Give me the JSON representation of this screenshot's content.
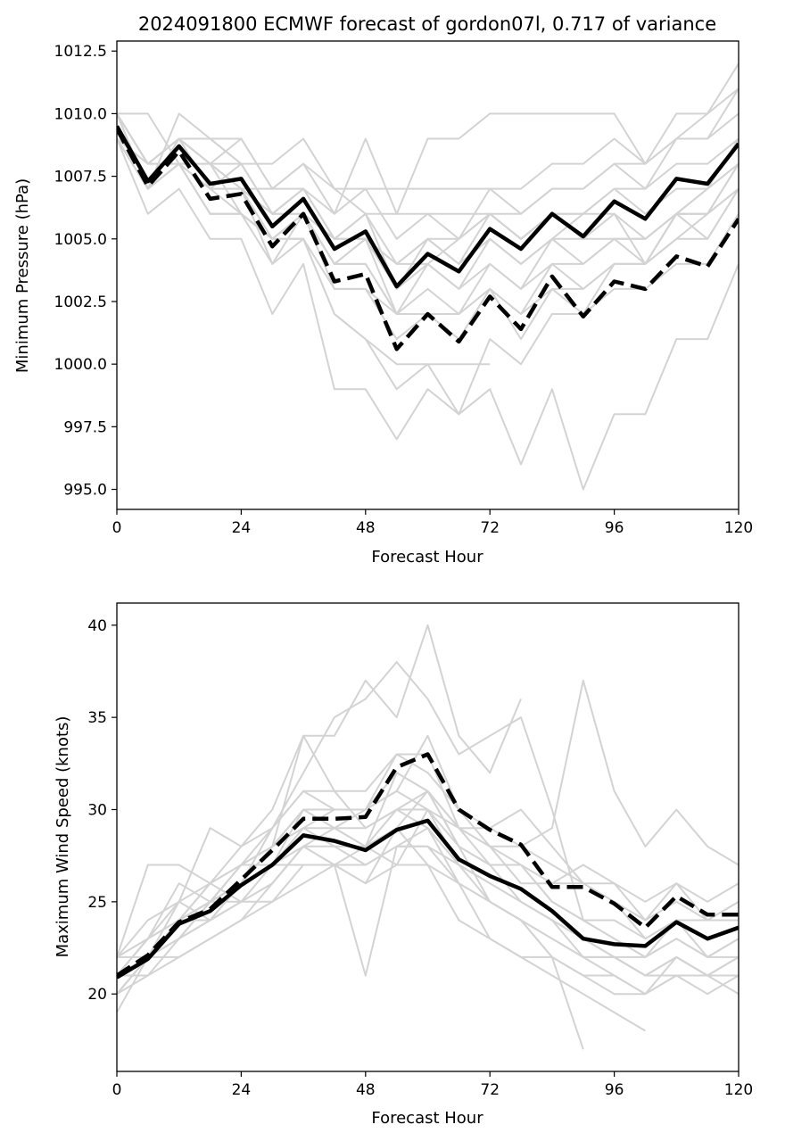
{
  "figure": {
    "title": "2024091800 ECMWF forecast of gordon07l, 0.717 of variance"
  },
  "colors": {
    "ensemble": "#d3d3d3",
    "mean": "#000000",
    "background": "#ffffff"
  },
  "chart_data": [
    {
      "type": "line",
      "title": "2024091800 ECMWF forecast of gordon07l, 0.717 of variance",
      "xlabel": "Forecast Hour",
      "ylabel": "Minimum Pressure (hPa)",
      "xlim": [
        0,
        120
      ],
      "ylim": [
        994.2,
        1012.9
      ],
      "xticks": [
        0,
        24,
        48,
        72,
        96,
        120
      ],
      "xtick_labels": [
        "0",
        "24",
        "48",
        "72",
        "96",
        "120"
      ],
      "yticks": [
        995.0,
        997.5,
        1000.0,
        1002.5,
        1005.0,
        1007.5,
        1010.0,
        1012.5
      ],
      "ytick_labels": [
        "995.0",
        "997.5",
        "1000.0",
        "1002.5",
        "1005.0",
        "1007.5",
        "1010.0",
        "1012.5"
      ],
      "grid": false,
      "x": [
        0,
        6,
        12,
        18,
        24,
        30,
        36,
        42,
        48,
        54,
        60,
        66,
        72,
        78,
        84,
        90,
        96,
        102,
        108,
        114,
        120
      ],
      "ensemble_members": [
        [
          1010,
          1010,
          1008,
          1008,
          1007,
          1007,
          1008,
          1007,
          1006,
          1006,
          1006,
          1006,
          1006,
          1006,
          1007,
          1007,
          1008,
          1008,
          1009,
          1010,
          1012
        ],
        [
          1010,
          1008,
          1009,
          1009,
          1009,
          1007,
          1007,
          1005,
          1005,
          1004,
          1004,
          1005,
          1006,
          1005,
          1006,
          1006,
          1007,
          1007,
          1009,
          1009,
          1011
        ],
        [
          1009,
          1007,
          1010,
          1009,
          1008,
          1006,
          1006,
          1004,
          1004,
          1002,
          1002,
          1001,
          1003,
          1002,
          1003,
          1003,
          1004,
          1004,
          1005,
          1005,
          1007
        ],
        [
          1010,
          1008,
          1009,
          1007,
          1007,
          1004,
          1006,
          1003,
          1003,
          1001,
          1002,
          1002,
          1003,
          1001,
          1003,
          1002,
          1003,
          1003,
          1004,
          1004,
          1006
        ],
        [
          1009,
          1006,
          1007,
          1005,
          1005,
          1002,
          1004,
          999,
          999,
          997,
          999,
          998,
          999,
          996,
          999,
          995,
          998,
          998,
          1001,
          1001,
          1004
        ],
        [
          1010,
          1008,
          1008,
          1008,
          1006,
          1005,
          1005,
          1002,
          1001,
          999,
          1000,
          1000,
          1000,
          null,
          null,
          null,
          null,
          null,
          null,
          null,
          null
        ],
        [
          1010,
          1007,
          1009,
          1007,
          1008,
          1006,
          1007,
          1006,
          1009,
          1006,
          1009,
          1009,
          1010,
          1010,
          1010,
          1010,
          1010,
          1008,
          1010,
          1010,
          1011
        ],
        [
          1009,
          1007,
          1008,
          1006,
          1006,
          1004,
          1005,
          1002,
          1001,
          1000,
          1000,
          998,
          1001,
          1000,
          1002,
          1002,
          1004,
          1004,
          1006,
          1006,
          1008
        ],
        [
          1009,
          1008,
          1009,
          1008,
          1009,
          1007,
          1008,
          1006,
          1007,
          1005,
          1006,
          1005,
          1007,
          1006,
          1007,
          1007,
          1008,
          1007,
          1008,
          1008,
          1009
        ],
        [
          1010,
          1008,
          1009,
          1008,
          1007,
          1006,
          1007,
          1005,
          1006,
          1003,
          1005,
          1004,
          1005,
          1004,
          1005,
          1006,
          1006,
          1005,
          1006,
          1006,
          1007
        ],
        [
          1009,
          1007,
          1008,
          1006,
          1006,
          1005,
          1006,
          1004,
          1005,
          1002,
          1004,
          1003,
          1004,
          1003,
          1005,
          1004,
          1005,
          1005,
          1006,
          1007,
          1008
        ],
        [
          1010,
          1008,
          1009,
          1008,
          1008,
          1006,
          1007,
          1005,
          1006,
          1004,
          1005,
          1004,
          1006,
          1005,
          1006,
          1005,
          1006,
          1004,
          1006,
          1006,
          1008
        ],
        [
          1010,
          1008,
          1009,
          1009,
          1008,
          1008,
          1009,
          1007,
          1007,
          1007,
          1007,
          1007,
          1007,
          1007,
          1008,
          1008,
          1009,
          1008,
          1009,
          1009,
          1010
        ],
        [
          1009,
          1007,
          1008,
          1007,
          1007,
          1005,
          1006,
          1004,
          1005,
          1003,
          1004,
          1003,
          1005,
          1004,
          1005,
          1005,
          1005,
          1004,
          1005,
          1006,
          1007
        ],
        [
          1010,
          1007,
          1009,
          1008,
          1007,
          1006,
          1006,
          1004,
          1004,
          1002,
          1003,
          1002,
          1004,
          1003,
          1004,
          1004,
          1005,
          1005,
          1006,
          1007,
          1009
        ],
        [
          1009,
          1008,
          1008,
          1007,
          1006,
          1005,
          1006,
          1005,
          1005,
          1004,
          1005,
          1005,
          1006,
          1005,
          1006,
          1006,
          1007,
          1006,
          1007,
          1007,
          1008
        ],
        [
          1010,
          1007,
          1008,
          1006,
          1006,
          1005,
          1005,
          1003,
          1003,
          1002,
          1002,
          1002,
          1003,
          1002,
          1004,
          1003,
          1004,
          1004,
          1006,
          1005,
          1007
        ]
      ],
      "mean": [
        1009.5,
        1007.3,
        1008.7,
        1007.2,
        1007.4,
        1005.5,
        1006.6,
        1004.6,
        1005.3,
        1003.1,
        1004.4,
        1003.7,
        1005.4,
        1004.6,
        1006.0,
        1005.1,
        1006.5,
        1005.8,
        1007.4,
        1007.2,
        1008.8
      ],
      "dashed": [
        1009.4,
        1007.1,
        1008.5,
        1006.6,
        1006.8,
        1004.7,
        1006.0,
        1003.3,
        1003.6,
        1000.6,
        1002.0,
        1000.9,
        1002.7,
        1001.4,
        1003.5,
        1001.9,
        1003.3,
        1003.0,
        1004.3,
        1003.9,
        1005.8
      ]
    },
    {
      "type": "line",
      "xlabel": "Forecast Hour",
      "ylabel": "Maximum Wind Speed (knots)",
      "xlim": [
        0,
        120
      ],
      "ylim": [
        15.8,
        41.2
      ],
      "xticks": [
        0,
        24,
        48,
        72,
        96,
        120
      ],
      "xtick_labels": [
        "0",
        "24",
        "48",
        "72",
        "96",
        "120"
      ],
      "yticks": [
        20,
        25,
        30,
        35,
        40
      ],
      "ytick_labels": [
        "20",
        "25",
        "30",
        "35",
        "40"
      ],
      "grid": false,
      "x": [
        0,
        6,
        12,
        18,
        24,
        30,
        36,
        42,
        48,
        54,
        60,
        66,
        72,
        78,
        84,
        90,
        96,
        102,
        108,
        114,
        120
      ],
      "ensemble_members": [
        [
          21,
          22,
          24,
          25,
          26,
          28,
          34,
          34,
          37,
          35,
          40,
          34,
          32,
          36,
          null,
          null,
          null,
          null,
          null,
          null,
          null
        ],
        [
          20,
          22,
          23,
          24,
          26,
          29,
          32,
          35,
          36,
          38,
          36,
          33,
          34,
          35,
          30,
          24,
          23,
          22,
          23,
          22,
          22
        ],
        [
          22,
          27,
          27,
          26,
          27,
          27,
          30,
          29,
          30,
          31,
          30,
          27,
          25,
          24,
          23,
          22,
          22,
          21,
          21,
          21,
          20
        ],
        [
          21,
          23,
          24,
          25,
          25,
          26,
          28,
          28,
          27,
          28,
          28,
          26,
          25,
          24,
          22,
          21,
          21,
          20,
          21,
          21,
          21
        ],
        [
          22,
          24,
          25,
          29,
          28,
          30,
          34,
          31,
          31,
          33,
          33,
          29,
          29,
          28,
          29,
          37,
          31,
          28,
          30,
          28,
          27
        ],
        [
          21,
          21,
          23,
          25,
          27,
          28,
          30,
          29,
          28,
          29,
          31,
          28,
          27,
          27,
          25,
          24,
          23,
          22,
          24,
          22,
          23
        ],
        [
          20,
          22,
          24,
          24,
          26,
          27,
          29,
          28,
          28,
          32,
          31,
          29,
          27,
          25,
          24,
          22,
          21,
          20,
          22,
          21,
          22
        ],
        [
          21,
          23,
          24,
          26,
          27,
          29,
          31,
          30,
          30,
          31,
          34,
          30,
          28,
          26,
          26,
          27,
          26,
          24,
          26,
          24,
          25
        ],
        [
          22,
          22,
          25,
          24,
          25,
          25,
          27,
          27,
          26,
          29,
          27,
          24,
          23,
          22,
          21,
          20,
          19,
          18,
          null,
          null,
          null
        ],
        [
          20,
          21,
          22,
          23,
          24,
          26,
          28,
          27,
          28,
          27,
          30,
          28,
          25,
          24,
          22,
          21,
          20,
          20,
          21,
          20,
          21
        ],
        [
          22,
          23,
          24,
          25,
          26,
          27,
          28,
          29,
          28,
          30,
          29,
          27,
          26,
          25,
          24,
          23,
          22,
          22,
          23,
          22,
          23
        ],
        [
          21,
          22,
          23,
          25,
          27,
          28,
          29,
          30,
          30,
          33,
          32,
          30,
          29,
          30,
          28,
          26,
          25,
          24,
          25,
          24,
          24
        ],
        [
          19,
          22,
          24,
          26,
          25,
          26,
          28,
          27,
          21,
          28,
          29,
          26,
          23,
          22,
          22,
          17,
          null,
          null,
          null,
          null,
          null
        ],
        [
          21,
          23,
          25,
          26,
          28,
          29,
          31,
          31,
          29,
          30,
          31,
          28,
          27,
          27,
          25,
          24,
          24,
          23,
          24,
          24,
          24
        ],
        [
          21,
          22,
          23,
          24,
          25,
          27,
          27,
          27,
          27,
          28,
          28,
          27,
          26,
          25,
          24,
          23,
          22,
          21,
          22,
          21,
          22
        ],
        [
          22,
          23,
          26,
          25,
          26,
          28,
          30,
          30,
          30,
          32,
          31,
          29,
          28,
          27,
          26,
          26,
          25,
          23,
          24,
          24,
          25
        ],
        [
          20,
          22,
          22,
          23,
          24,
          25,
          26,
          27,
          26,
          27,
          27,
          26,
          25,
          24,
          23,
          22,
          22,
          21,
          22,
          21,
          21
        ],
        [
          21,
          22,
          24,
          25,
          26,
          28,
          29,
          29,
          29,
          30,
          30,
          29,
          28,
          28,
          27,
          26,
          26,
          25,
          26,
          25,
          26
        ]
      ],
      "mean": [
        20.9,
        21.9,
        23.8,
        24.5,
        25.9,
        27.0,
        28.6,
        28.3,
        27.8,
        28.9,
        29.4,
        27.3,
        26.4,
        25.7,
        24.5,
        23.0,
        22.7,
        22.6,
        23.9,
        23.0,
        23.6
      ],
      "dashed": [
        21.0,
        22.1,
        23.9,
        24.6,
        26.2,
        27.8,
        29.5,
        29.5,
        29.6,
        32.3,
        33.0,
        30.0,
        28.9,
        28.1,
        25.8,
        25.8,
        24.9,
        23.6,
        25.3,
        24.3,
        24.3
      ]
    }
  ]
}
